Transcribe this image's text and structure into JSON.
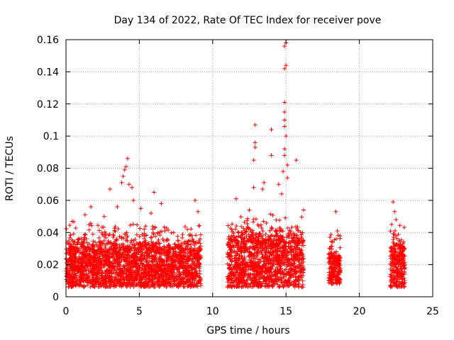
{
  "chart_data": {
    "type": "scatter",
    "title": "Day 134 of 2022, Rate Of TEC Index for receiver pove",
    "xlabel": "GPS time / hours",
    "ylabel": "ROTI / TECUs",
    "xlim": [
      0,
      25
    ],
    "ylim": [
      0,
      0.16
    ],
    "x_ticks": [
      "0",
      "5",
      "10",
      "15",
      "20",
      "25"
    ],
    "y_ticks": [
      "0",
      "0.02",
      "0.04",
      "0.06",
      "0.08",
      "0.1",
      "0.12",
      "0.14",
      "0.16"
    ],
    "grid": true,
    "legend": "none",
    "marker": "+",
    "marker_color": "#ff0000",
    "observation_windows": [
      {
        "x_start": 0.0,
        "x_end": 9.2,
        "typical_y": [
          0.006,
          0.03
        ]
      },
      {
        "x_start": 11.0,
        "x_end": 16.2,
        "typical_y": [
          0.006,
          0.035
        ]
      },
      {
        "x_start": 17.9,
        "x_end": 18.7,
        "typical_y": [
          0.008,
          0.025
        ]
      },
      {
        "x_start": 22.1,
        "x_end": 23.1,
        "typical_y": [
          0.006,
          0.03
        ]
      }
    ],
    "notable_points": [
      {
        "x": 1.3,
        "y": 0.051
      },
      {
        "x": 1.7,
        "y": 0.056
      },
      {
        "x": 2.6,
        "y": 0.05
      },
      {
        "x": 3.0,
        "y": 0.067
      },
      {
        "x": 3.5,
        "y": 0.056
      },
      {
        "x": 3.8,
        "y": 0.071
      },
      {
        "x": 3.9,
        "y": 0.075
      },
      {
        "x": 4.0,
        "y": 0.079
      },
      {
        "x": 4.1,
        "y": 0.081
      },
      {
        "x": 4.2,
        "y": 0.086
      },
      {
        "x": 4.3,
        "y": 0.07
      },
      {
        "x": 4.5,
        "y": 0.068
      },
      {
        "x": 4.6,
        "y": 0.06
      },
      {
        "x": 5.1,
        "y": 0.055
      },
      {
        "x": 5.8,
        "y": 0.052
      },
      {
        "x": 6.0,
        "y": 0.065
      },
      {
        "x": 6.5,
        "y": 0.058
      },
      {
        "x": 8.8,
        "y": 0.06
      },
      {
        "x": 9.0,
        "y": 0.053
      },
      {
        "x": 11.6,
        "y": 0.061
      },
      {
        "x": 12.5,
        "y": 0.054
      },
      {
        "x": 12.8,
        "y": 0.068
      },
      {
        "x": 12.8,
        "y": 0.085
      },
      {
        "x": 12.9,
        "y": 0.093
      },
      {
        "x": 12.9,
        "y": 0.096
      },
      {
        "x": 12.9,
        "y": 0.107
      },
      {
        "x": 13.4,
        "y": 0.067
      },
      {
        "x": 13.5,
        "y": 0.071
      },
      {
        "x": 14.0,
        "y": 0.088
      },
      {
        "x": 14.0,
        "y": 0.104
      },
      {
        "x": 14.5,
        "y": 0.07
      },
      {
        "x": 14.7,
        "y": 0.064
      },
      {
        "x": 14.8,
        "y": 0.078
      },
      {
        "x": 14.9,
        "y": 0.088
      },
      {
        "x": 14.9,
        "y": 0.092
      },
      {
        "x": 14.9,
        "y": 0.106
      },
      {
        "x": 14.9,
        "y": 0.11
      },
      {
        "x": 14.9,
        "y": 0.115
      },
      {
        "x": 14.9,
        "y": 0.121
      },
      {
        "x": 14.9,
        "y": 0.142
      },
      {
        "x": 15.0,
        "y": 0.144
      },
      {
        "x": 14.9,
        "y": 0.156
      },
      {
        "x": 15.0,
        "y": 0.158
      },
      {
        "x": 15.0,
        "y": 0.1
      },
      {
        "x": 15.1,
        "y": 0.082
      },
      {
        "x": 15.1,
        "y": 0.074
      },
      {
        "x": 15.7,
        "y": 0.085
      },
      {
        "x": 16.2,
        "y": 0.054
      },
      {
        "x": 18.4,
        "y": 0.053
      },
      {
        "x": 18.5,
        "y": 0.041
      },
      {
        "x": 18.0,
        "y": 0.037
      },
      {
        "x": 22.3,
        "y": 0.059
      },
      {
        "x": 22.4,
        "y": 0.053
      },
      {
        "x": 22.5,
        "y": 0.048
      },
      {
        "x": 22.2,
        "y": 0.045
      }
    ]
  }
}
